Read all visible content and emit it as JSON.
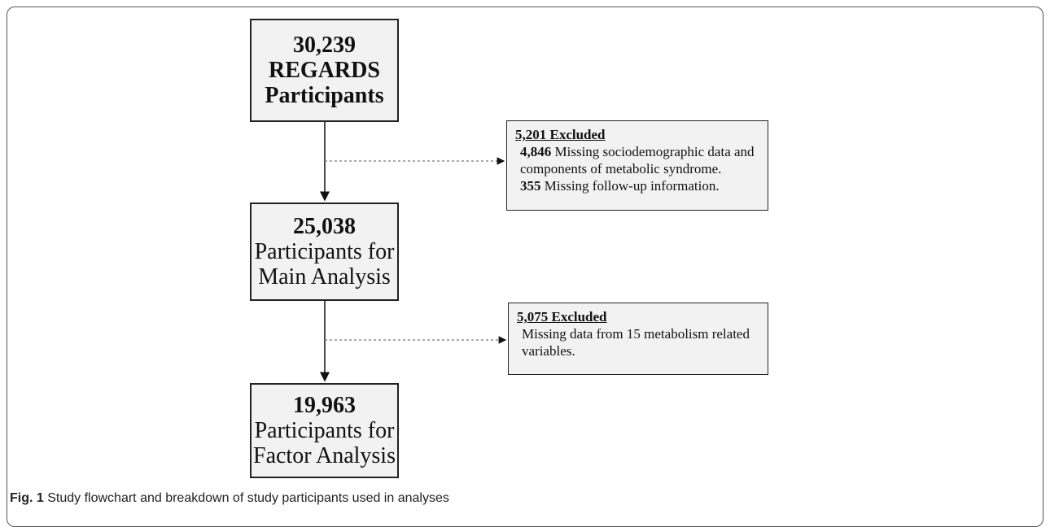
{
  "flowchart": {
    "nodes": [
      {
        "count": "30,239",
        "lines": [
          "REGARDS",
          "Participants"
        ]
      },
      {
        "count": "25,038",
        "lines": [
          "Participants for",
          "Main Analysis"
        ]
      },
      {
        "count": "19,963",
        "lines": [
          "Participants for",
          "Factor Analysis"
        ]
      }
    ],
    "exclusions": [
      {
        "title": "5,201 Excluded",
        "lines": [
          {
            "count": "4,846",
            "text": "Missing sociodemographic data and"
          },
          {
            "text": "components of metabolic syndrome."
          },
          {
            "count": "355",
            "text": "Missing follow-up information."
          }
        ]
      },
      {
        "title": "5,075 Excluded",
        "lines": [
          {
            "text": "Missing data from 15 metabolism related"
          },
          {
            "text": "variables."
          }
        ]
      }
    ]
  },
  "caption": {
    "label": "Fig. 1",
    "text": "Study flowchart and breakdown of study participants used in analyses"
  }
}
